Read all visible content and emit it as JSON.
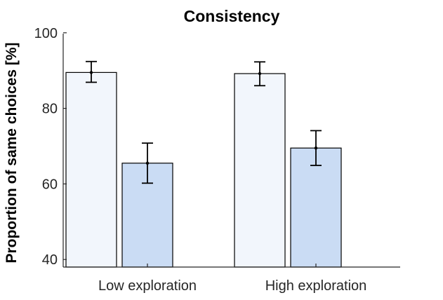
{
  "chart_data": {
    "type": "bar",
    "title": "Consistency",
    "xlabel": "",
    "ylabel": "Proportion of same choices [%]",
    "ylim": [
      38,
      102
    ],
    "yticks": [
      40,
      60,
      80,
      100
    ],
    "categories": [
      "Low exploration",
      "High exploration"
    ],
    "series": [
      {
        "values": [
          89.5,
          89.2
        ],
        "error_low": [
          86.9,
          86.0
        ],
        "error_high": [
          92.4,
          92.3
        ],
        "color": "#f2f6fc"
      },
      {
        "values": [
          65.5,
          69.5
        ],
        "error_low": [
          60.2,
          64.9
        ],
        "error_high": [
          70.8,
          74.1
        ],
        "color": "#cadcf4"
      }
    ],
    "grid": false,
    "legend": "none"
  }
}
